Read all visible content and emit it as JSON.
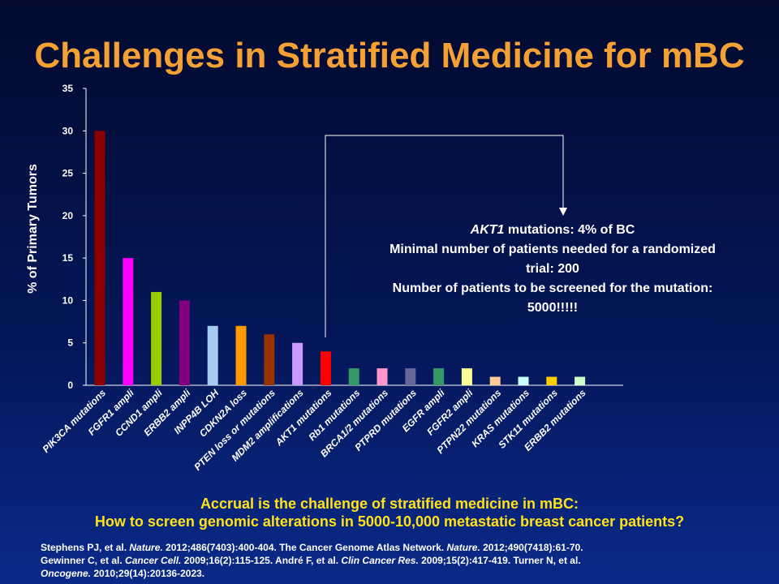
{
  "slide": {
    "title": "Challenges in Stratified Medicine for mBC"
  },
  "annotation": {
    "gene": "AKT1",
    "line1_rest": " mutations: 4% of BC",
    "line2": "Minimal  number of patients needed for a randomized trial: 200",
    "line3": "Number of patients to be screened for the mutation: 5000!!!!!"
  },
  "bottom": {
    "line1": "Accrual is the challenge of stratified medicine in mBC:",
    "line2": "How to screen genomic alterations in 5000-10,000 metastatic breast cancer patients?"
  },
  "references": {
    "r1_pre": "Stephens PJ,  et al. ",
    "r1_journal": "Nature.",
    "r1_post": " 2012;486(7403):400-404.  The Cancer Genome Atlas Network. ",
    "r2_journal": "Nature.",
    "r2_post": " 2012;490(7418):61-70.",
    "r3_pre": "Gewinner C, et al. ",
    "r3_journal": "Cancer Cell.",
    "r3_post": " 2009;16(2):115-125.  André F, et al. ",
    "r4_journal": "Clin Cancer Res.",
    "r4_post": " 2009;15(2):417-419.  Turner N, et al. ",
    "r5_journal": "Oncogene.",
    "r5_post": " 2010;29(14):20136-2023."
  },
  "chart_data": {
    "type": "bar",
    "title": "",
    "xlabel": "",
    "ylabel": "% of Primary Tumors",
    "ylim": [
      0,
      35
    ],
    "yticks": [
      0,
      5,
      10,
      15,
      20,
      25,
      30,
      35
    ],
    "grid": false,
    "legend": "none",
    "categories": [
      "PIK3CA mutations",
      "FGFR1 ampli",
      "CCND1 ampli",
      "ERBB2 ampli",
      "INPP4B LOH",
      "CDKN2A loss",
      "PTEN loss or mutations",
      "MDM2 amplifications",
      "AKT1 mutations",
      "Rb1 mutations",
      "BRCA1/2 mutations",
      "PTPRD mutations",
      "EGFR ampli",
      "FGFR2 ampli",
      "PTPN22 mutations",
      "KRAS mutations",
      "STK11 mutations",
      "ERBB2 mutations"
    ],
    "values": [
      30,
      15,
      11,
      10,
      7,
      7,
      6,
      5,
      4,
      2,
      2,
      2,
      2,
      2,
      1,
      1,
      1,
      1
    ],
    "colors": [
      "#8b0000",
      "#ff00ff",
      "#99cc00",
      "#800080",
      "#a6caf0",
      "#ff9900",
      "#993300",
      "#cc99ff",
      "#ff0000",
      "#339966",
      "#ff99cc",
      "#666699",
      "#339966",
      "#ffff99",
      "#ffcc99",
      "#ccffff",
      "#ffcc00",
      "#ccffcc"
    ]
  }
}
